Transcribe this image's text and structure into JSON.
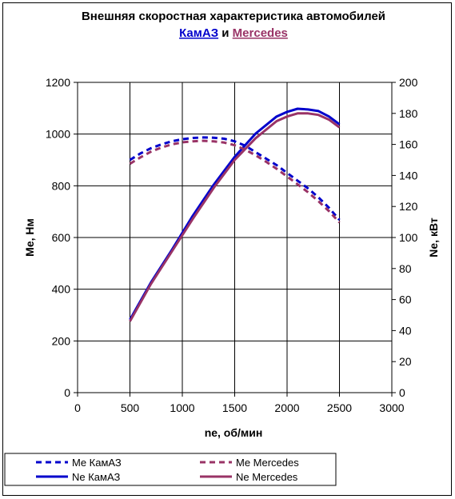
{
  "chart_data": {
    "type": "line",
    "title_line1": "Внешняя скоростная характеристика автомобилей",
    "title_kamaz": "КамАЗ",
    "title_and": " и ",
    "title_mercedes": "Mercedes",
    "xlabel": "ne, об/мин",
    "ylabel_left": "Me, Нм",
    "ylabel_right": "Ne, кВт",
    "xlim": [
      0,
      3000
    ],
    "ylim_left": [
      0,
      1200
    ],
    "ylim_right": [
      0,
      200
    ],
    "x_ticks": [
      "0",
      "500",
      "1000",
      "1500",
      "2000",
      "2500",
      "3000"
    ],
    "y_left_ticks": [
      "0",
      "200",
      "400",
      "600",
      "800",
      "1000",
      "1200"
    ],
    "y_right_ticks": [
      "0",
      "20",
      "40",
      "60",
      "80",
      "100",
      "120",
      "140",
      "160",
      "180",
      "200"
    ],
    "grid": true,
    "legend_position": "bottom",
    "colors": {
      "kamaz": "#0000cc",
      "mercedes": "#993366"
    },
    "series": [
      {
        "name": "Me КамАЗ",
        "axis": "left",
        "style": "dashed",
        "color": "#0000cc",
        "x": [
          500,
          600,
          700,
          800,
          900,
          1000,
          1100,
          1200,
          1300,
          1400,
          1500,
          1600,
          1700,
          1800,
          1900,
          2000,
          2100,
          2200,
          2300,
          2400,
          2500
        ],
        "values": [
          900,
          925,
          945,
          960,
          972,
          980,
          985,
          987,
          986,
          982,
          972,
          955,
          930,
          905,
          880,
          850,
          820,
          790,
          755,
          715,
          668
        ]
      },
      {
        "name": "Ne КамАЗ",
        "axis": "right",
        "style": "solid",
        "color": "#0000cc",
        "x": [
          500,
          700,
          900,
          1100,
          1300,
          1500,
          1700,
          1900,
          2000,
          2100,
          2200,
          2300,
          2400,
          2500
        ],
        "values": [
          47,
          71,
          92,
          114,
          134,
          152,
          167,
          178,
          181,
          183,
          182.5,
          181.5,
          178,
          173
        ]
      },
      {
        "name": "Me Mercedes",
        "axis": "left",
        "style": "dashed",
        "color": "#993366",
        "x": [
          500,
          600,
          700,
          800,
          900,
          1000,
          1100,
          1200,
          1300,
          1400,
          1500,
          1600,
          1700,
          1800,
          1900,
          2000,
          2100,
          2200,
          2300,
          2400,
          2500
        ],
        "values": [
          885,
          910,
          932,
          948,
          960,
          968,
          972,
          974,
          972,
          967,
          957,
          940,
          918,
          893,
          866,
          836,
          806,
          775,
          740,
          702,
          658
        ]
      },
      {
        "name": "Ne Mercedes",
        "axis": "right",
        "style": "solid",
        "color": "#993366",
        "x": [
          500,
          700,
          900,
          1100,
          1300,
          1500,
          1700,
          1900,
          2000,
          2100,
          2200,
          2300,
          2400,
          2500
        ],
        "values": [
          46,
          70,
          91,
          112,
          132,
          150,
          164,
          175,
          178,
          180,
          180,
          179,
          176,
          171
        ]
      }
    ]
  }
}
